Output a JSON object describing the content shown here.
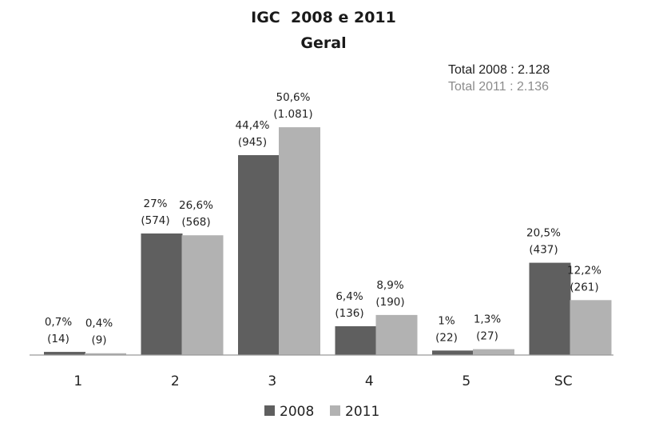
{
  "chart_data": {
    "type": "bar",
    "title": "IGC  2008 e 2011",
    "subtitle": "Geral",
    "totals": [
      {
        "label": "Total 2008 : 2.128",
        "color": "#222222"
      },
      {
        "label": "Total 2011 : 2.136",
        "color": "#8c8c8c"
      }
    ],
    "categories": [
      "1",
      "2",
      "3",
      "4",
      "5",
      "SC"
    ],
    "ylim": [
      0,
      55
    ],
    "grid": false,
    "legend_position": "bottom",
    "series": [
      {
        "name": "2008",
        "color": "#5f5f5f",
        "values": [
          0.7,
          27,
          44.4,
          6.4,
          1,
          20.5
        ],
        "labels_pct": [
          "0,7%",
          "27%",
          "44,4%",
          "6,4%",
          "1%",
          "20,5%"
        ],
        "labels_count": [
          "(14)",
          "(574)",
          "(945)",
          "(136)",
          "(22)",
          "(437)"
        ]
      },
      {
        "name": "2011",
        "color": "#b2b2b2",
        "values": [
          0.4,
          26.6,
          50.6,
          8.9,
          1.3,
          12.2
        ],
        "labels_pct": [
          "0,4%",
          "26,6%",
          "50,6%",
          "8,9%",
          "1,3%",
          "12,2%"
        ],
        "labels_count": [
          "(9)",
          "(568)",
          "(1.081)",
          "(190)",
          "(27)",
          "(261)"
        ]
      }
    ]
  }
}
